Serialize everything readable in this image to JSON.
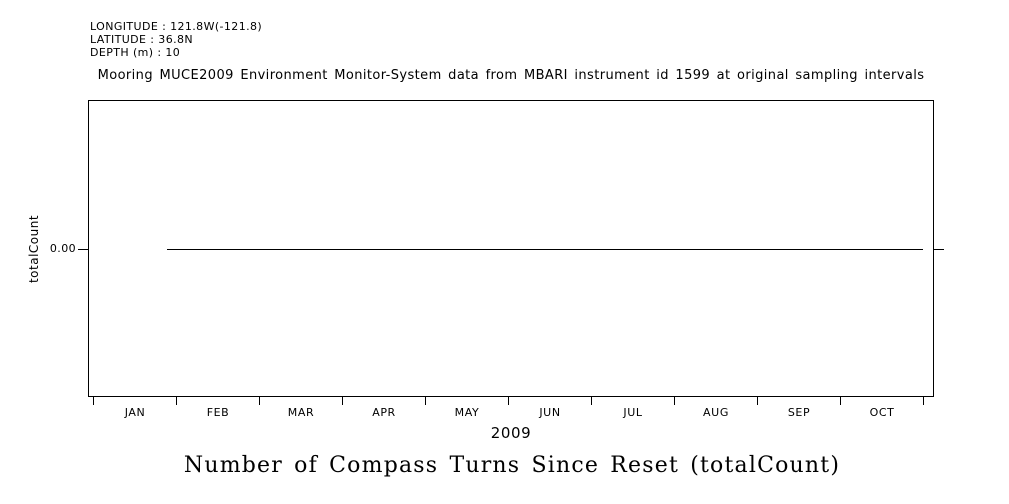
{
  "header": {
    "longitude": "LONGITUDE : 121.8W(-121.8)",
    "latitude": "LATITUDE : 36.8N",
    "depth": "DEPTH (m) : 10"
  },
  "chart_data": {
    "type": "line",
    "title": "Mooring MUCE2009 Environment Monitor-System data from MBARI instrument id 1599 at original sampling intervals",
    "xlabel": "2009",
    "ylabel": "totalCount",
    "caption": "Number of Compass Turns Since Reset (totalCount)",
    "x_axis": {
      "year": "2009",
      "tick_months": [
        "JAN",
        "FEB",
        "MAR",
        "APR",
        "MAY",
        "JUN",
        "JUL",
        "AUG",
        "SEP",
        "OCT"
      ]
    },
    "y_axis": {
      "ticks": [
        0
      ],
      "tick_labels": [
        "0.00"
      ],
      "ylim": [
        -1,
        1
      ]
    },
    "grid": false,
    "legend": false,
    "series": [
      {
        "name": "totalCount",
        "constant_value": 0.0,
        "x_start": "2009-01-28",
        "x_end": "2009-11-01",
        "color": "#000000",
        "note": "flat line at 0.00 for entire record"
      }
    ]
  },
  "colors": {
    "background": "#ffffff",
    "foreground": "#000000"
  }
}
